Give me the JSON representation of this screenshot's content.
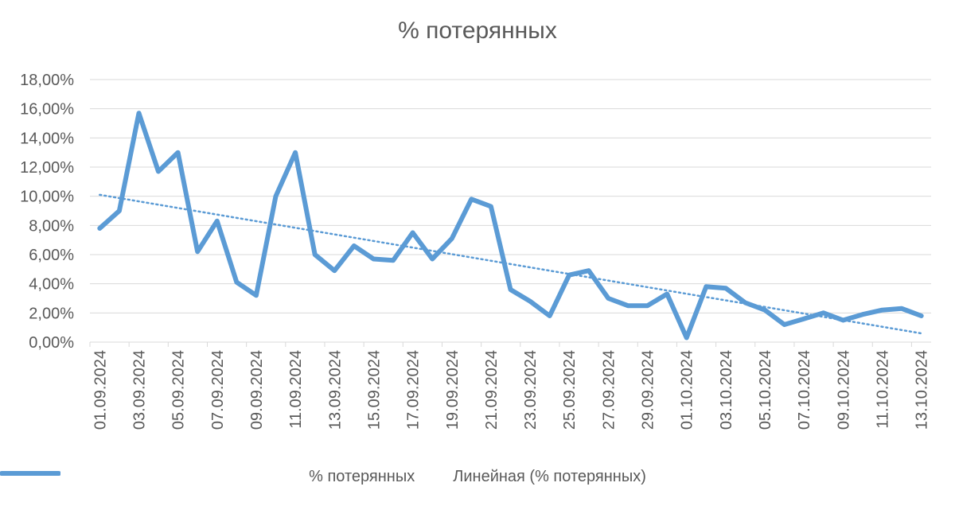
{
  "chart_data": {
    "type": "line",
    "title": "% потерянных",
    "xlabel": "",
    "ylabel": "",
    "ylim": [
      0,
      18
    ],
    "y_ticks": [
      "0,00%",
      "2,00%",
      "4,00%",
      "6,00%",
      "8,00%",
      "10,00%",
      "12,00%",
      "14,00%",
      "16,00%",
      "18,00%"
    ],
    "grid": true,
    "legend_position": "bottom",
    "x": [
      "01.09.2024",
      "02.09.2024",
      "03.09.2024",
      "04.09.2024",
      "05.09.2024",
      "06.09.2024",
      "07.09.2024",
      "08.09.2024",
      "09.09.2024",
      "10.09.2024",
      "11.09.2024",
      "12.09.2024",
      "13.09.2024",
      "14.09.2024",
      "15.09.2024",
      "16.09.2024",
      "17.09.2024",
      "18.09.2024",
      "19.09.2024",
      "20.09.2024",
      "21.09.2024",
      "22.09.2024",
      "23.09.2024",
      "24.09.2024",
      "25.09.2024",
      "26.09.2024",
      "27.09.2024",
      "28.09.2024",
      "29.09.2024",
      "30.09.2024",
      "01.10.2024",
      "02.10.2024",
      "03.10.2024",
      "04.10.2024",
      "05.10.2024",
      "06.10.2024",
      "07.10.2024",
      "08.10.2024",
      "09.10.2024",
      "10.10.2024",
      "11.10.2024",
      "12.10.2024",
      "13.10.2024"
    ],
    "x_tick_labels": [
      "01.09.2024",
      "03.09.2024",
      "05.09.2024",
      "07.09.2024",
      "09.09.2024",
      "11.09.2024",
      "13.09.2024",
      "15.09.2024",
      "17.09.2024",
      "19.09.2024",
      "21.09.2024",
      "23.09.2024",
      "25.09.2024",
      "27.09.2024",
      "29.09.2024",
      "01.10.2024",
      "03.10.2024",
      "05.10.2024",
      "07.10.2024",
      "09.10.2024",
      "11.10.2024",
      "13.10.2024"
    ],
    "series": [
      {
        "name": "% потерянных",
        "color": "#5B9BD5",
        "style": "solid",
        "values": [
          7.8,
          9.0,
          15.7,
          11.7,
          13.0,
          6.2,
          8.3,
          4.1,
          3.2,
          10.0,
          13.0,
          6.0,
          4.9,
          6.6,
          5.7,
          5.6,
          7.5,
          5.7,
          7.1,
          9.8,
          9.3,
          3.6,
          2.8,
          1.8,
          4.6,
          4.9,
          3.0,
          2.5,
          2.5,
          3.3,
          0.3,
          3.8,
          3.7,
          2.7,
          2.2,
          1.2,
          1.6,
          2.0,
          1.5,
          1.9,
          2.2,
          2.3,
          1.8
        ]
      },
      {
        "name": "Линейная (% потерянных)",
        "color": "#5B9BD5",
        "style": "dotted",
        "trend": [
          10.1,
          0.6
        ]
      }
    ]
  }
}
